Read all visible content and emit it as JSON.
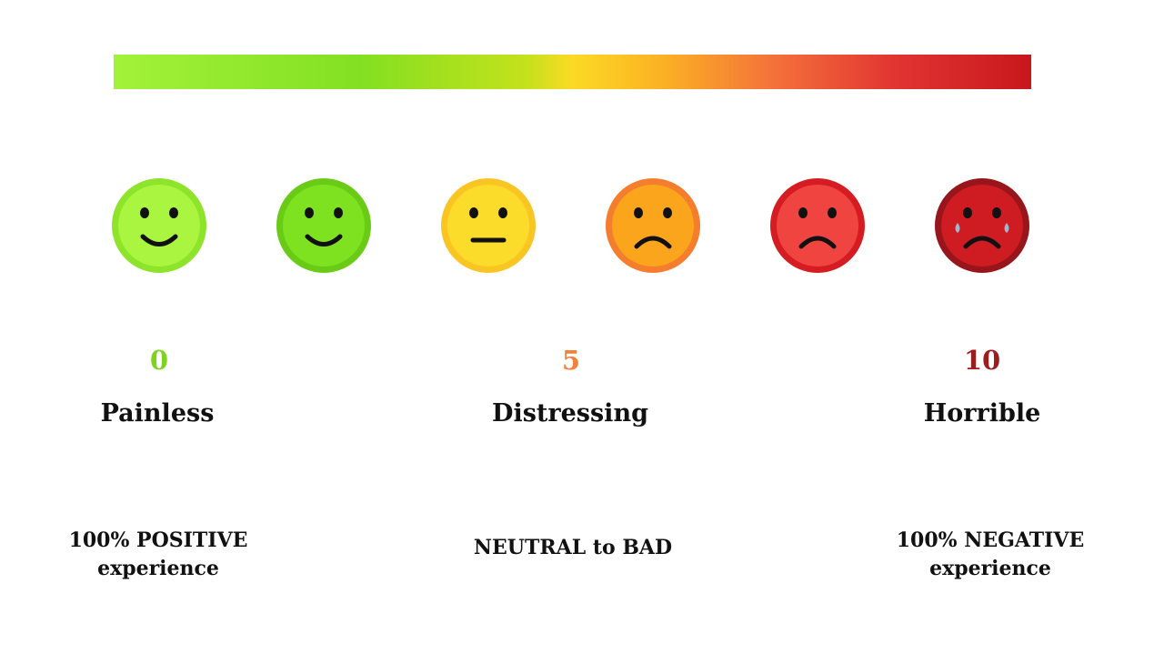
{
  "colors": {
    "green_light": "#a2f23a",
    "green": "#7ed321",
    "yellow": "#fcda25",
    "orange": "#f79a25",
    "red": "#e23532",
    "dark_red": "#a3141a",
    "tear_blue": "#8fb2d4"
  },
  "faces": [
    {
      "icon": "very-happy-face-icon",
      "mood": "smile"
    },
    {
      "icon": "happy-face-icon",
      "mood": "smile"
    },
    {
      "icon": "neutral-face-icon",
      "mood": "neutral"
    },
    {
      "icon": "sad-face-icon",
      "mood": "frown"
    },
    {
      "icon": "very-sad-face-icon",
      "mood": "frown"
    },
    {
      "icon": "crying-face-icon",
      "mood": "crying"
    }
  ],
  "scale_points": [
    {
      "number": "0",
      "label": "Painless"
    },
    {
      "number": "5",
      "label": "Distressing"
    },
    {
      "number": "10",
      "label": "Horrible"
    }
  ],
  "captions": {
    "left": {
      "line1": "100% POSITIVE",
      "line2": "experience"
    },
    "center": {
      "line1": "NEUTRAL to BAD"
    },
    "right": {
      "line1": "100% NEGATIVE",
      "line2": "experience"
    }
  }
}
